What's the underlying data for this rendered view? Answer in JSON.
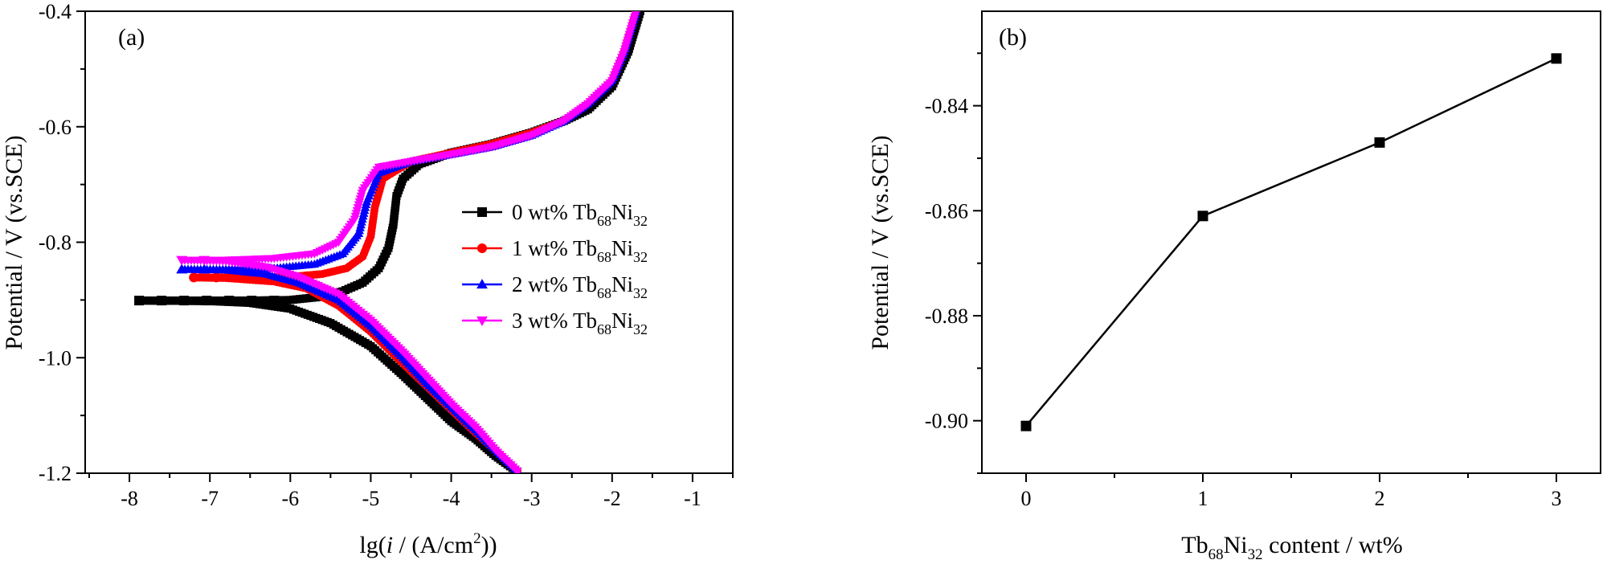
{
  "chart_data": [
    {
      "panel": "(a)",
      "type": "line",
      "xlabel": {
        "pre": "lg(",
        "italic": "i",
        "mid": " / (A/cm",
        "sup": "2",
        "post": "))"
      },
      "ylabel": "Potential / V (vs.SCE)",
      "xlim": [
        -8.55,
        -0.5
      ],
      "ylim": [
        -1.2,
        -0.4
      ],
      "x_ticks": [
        -8,
        -7,
        -6,
        -5,
        -4,
        -3,
        -2,
        -1
      ],
      "x_tick_labels": [
        "-8",
        "-7",
        "-6",
        "-5",
        "-4",
        "-3",
        "-2",
        "-1"
      ],
      "y_ticks": [
        -1.2,
        -1.0,
        -0.8,
        -0.6,
        -0.4
      ],
      "y_tick_labels": [
        "-1.2",
        "-1.0",
        "-0.8",
        "-0.6",
        "-0.4"
      ],
      "legend_position": "center-right",
      "series": [
        {
          "name": {
            "pre": "0 wt% Tb",
            "sub1": "68",
            "mid": "Ni",
            "sub2": "32"
          },
          "color": "#000000",
          "marker": "square",
          "ecorr": -0.901,
          "x": [
            -1.65,
            -1.8,
            -2.0,
            -2.3,
            -2.6,
            -3.0,
            -3.5,
            -4.0,
            -4.4,
            -4.6,
            -4.68,
            -4.72,
            -4.78,
            -4.9,
            -5.1,
            -5.35,
            -5.65,
            -6.0,
            -6.5,
            -7.0,
            -7.5,
            -7.88,
            -7.0,
            -6.5,
            -6.0,
            -5.5,
            -5.0,
            -4.6,
            -4.3,
            -4.0,
            -3.7,
            -3.45,
            -3.15
          ],
          "y": [
            -0.4,
            -0.47,
            -0.53,
            -0.57,
            -0.59,
            -0.61,
            -0.63,
            -0.645,
            -0.665,
            -0.69,
            -0.72,
            -0.77,
            -0.81,
            -0.845,
            -0.87,
            -0.885,
            -0.895,
            -0.9,
            -0.901,
            -0.901,
            -0.901,
            -0.901,
            -0.902,
            -0.905,
            -0.915,
            -0.94,
            -0.98,
            -1.03,
            -1.07,
            -1.11,
            -1.14,
            -1.17,
            -1.2
          ]
        },
        {
          "name": {
            "pre": "1 wt% Tb",
            "sub1": "68",
            "mid": "Ni",
            "sub2": "32"
          },
          "color": "#ff0000",
          "marker": "circle",
          "ecorr": -0.861,
          "x": [
            -1.7,
            -1.85,
            -2.0,
            -2.3,
            -2.6,
            -3.0,
            -3.5,
            -4.0,
            -4.5,
            -4.85,
            -4.95,
            -5.0,
            -5.1,
            -5.3,
            -5.6,
            -6.0,
            -6.5,
            -7.0,
            -7.2,
            -6.8,
            -6.2,
            -5.8,
            -5.4,
            -5.0,
            -4.6,
            -4.3,
            -4.0,
            -3.7,
            -3.45,
            -3.15
          ],
          "y": [
            -0.4,
            -0.47,
            -0.52,
            -0.56,
            -0.59,
            -0.61,
            -0.63,
            -0.645,
            -0.66,
            -0.69,
            -0.74,
            -0.79,
            -0.825,
            -0.845,
            -0.855,
            -0.86,
            -0.861,
            -0.861,
            -0.861,
            -0.862,
            -0.868,
            -0.88,
            -0.91,
            -0.955,
            -1.01,
            -1.05,
            -1.09,
            -1.13,
            -1.16,
            -1.2
          ]
        },
        {
          "name": {
            "pre": "2 wt%  Tb",
            "sub1": "68",
            "mid": "Ni",
            "sub2": "32"
          },
          "color": "#0000ff",
          "marker": "triangle",
          "ecorr": -0.847,
          "x": [
            -1.7,
            -1.85,
            -2.0,
            -2.3,
            -2.6,
            -3.0,
            -3.5,
            -4.0,
            -4.5,
            -4.9,
            -5.05,
            -5.15,
            -5.35,
            -5.7,
            -6.2,
            -6.8,
            -7.35,
            -6.8,
            -6.3,
            -5.9,
            -5.4,
            -5.0,
            -4.6,
            -4.3,
            -4.0,
            -3.7,
            -3.45,
            -3.15
          ],
          "y": [
            -0.4,
            -0.47,
            -0.52,
            -0.56,
            -0.59,
            -0.615,
            -0.635,
            -0.648,
            -0.66,
            -0.68,
            -0.73,
            -0.785,
            -0.82,
            -0.838,
            -0.845,
            -0.847,
            -0.847,
            -0.848,
            -0.855,
            -0.87,
            -0.9,
            -0.945,
            -1.0,
            -1.045,
            -1.085,
            -1.125,
            -1.16,
            -1.2
          ]
        },
        {
          "name": {
            "pre": "3 wt%  Tb",
            "sub1": "68",
            "mid": "Ni",
            "sub2": "32"
          },
          "color": "#ff00ff",
          "marker": "triangle-down",
          "ecorr": -0.831,
          "x": [
            -1.7,
            -1.85,
            -2.0,
            -2.3,
            -2.6,
            -3.0,
            -3.5,
            -4.0,
            -4.5,
            -4.9,
            -5.1,
            -5.2,
            -5.4,
            -5.7,
            -6.2,
            -6.8,
            -7.35,
            -6.8,
            -6.3,
            -5.9,
            -5.4,
            -5.0,
            -4.6,
            -4.3,
            -4.0,
            -3.7,
            -3.45,
            -3.15
          ],
          "y": [
            -0.4,
            -0.47,
            -0.52,
            -0.56,
            -0.59,
            -0.615,
            -0.635,
            -0.648,
            -0.66,
            -0.67,
            -0.71,
            -0.76,
            -0.8,
            -0.82,
            -0.828,
            -0.831,
            -0.831,
            -0.833,
            -0.843,
            -0.86,
            -0.89,
            -0.935,
            -0.99,
            -1.035,
            -1.08,
            -1.12,
            -1.16,
            -1.2
          ]
        }
      ]
    },
    {
      "panel": "(b)",
      "type": "line",
      "xlabel": {
        "pre": "Tb",
        "sub1": "68",
        "mid": "Ni",
        "sub2": "32",
        "post": " content / wt%"
      },
      "ylabel": "Potential / V (vs.SCE)",
      "xlim": [
        -0.25,
        3.25
      ],
      "ylim": [
        -0.91,
        -0.822
      ],
      "x_ticks": [
        0,
        1,
        2,
        3
      ],
      "x_tick_labels": [
        "0",
        "1",
        "2",
        "3"
      ],
      "y_ticks": [
        -0.9,
        -0.88,
        -0.86,
        -0.84
      ],
      "y_tick_labels": [
        "-0.90",
        "-0.88",
        "-0.86",
        "-0.84"
      ],
      "series": [
        {
          "color": "#000000",
          "marker": "square",
          "x": [
            0,
            1,
            2,
            3
          ],
          "y": [
            -0.901,
            -0.861,
            -0.847,
            -0.831
          ]
        }
      ]
    }
  ]
}
